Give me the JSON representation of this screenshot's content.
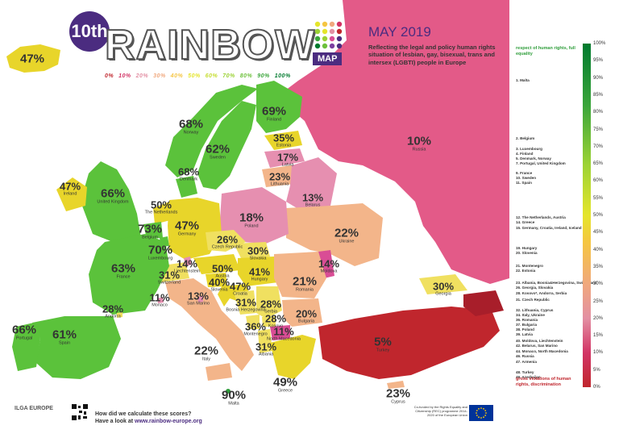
{
  "header": {
    "edition": "10th",
    "title": "RAINBOW",
    "badge": "MAP",
    "month": "MAY 2019",
    "description": "Reflecting the legal and policy human rights situation of lesbian, gay, bisexual, trans and intersex (LGBTI) people in Europe",
    "scale_labels": [
      "0%",
      "10%",
      "20%",
      "30%",
      "40%",
      "50%",
      "60%",
      "70%",
      "80%",
      "90%",
      "100%"
    ]
  },
  "legend": {
    "top": "respect of human rights, full equality",
    "bottom": "gross violations of human rights, discrimination",
    "ticks": [
      "100%",
      "95%",
      "90%",
      "85%",
      "80%",
      "75%",
      "70%",
      "65%",
      "60%",
      "55%",
      "50%",
      "45%",
      "40%",
      "35%",
      "30%",
      "25%",
      "20%",
      "15%",
      "10%",
      "5%",
      "0%"
    ]
  },
  "ranking": [
    {
      "text": "1. Malta",
      "value": 90
    },
    {
      "text": "2. Belgium",
      "value": 73
    },
    {
      "text": "3. Luxembourg",
      "value": 70
    },
    {
      "text": "4. Finland",
      "value": 69
    },
    {
      "text": "5. Denmark, Norway",
      "value": 68
    },
    {
      "text": "7. Portugal, United Kingdom",
      "value": 66
    },
    {
      "text": "9. France",
      "value": 63
    },
    {
      "text": "10. Sweden",
      "value": 62
    },
    {
      "text": "11. Spain",
      "value": 61
    },
    {
      "text": "12. The Netherlands, Austria",
      "value": 50
    },
    {
      "text": "14. Greece",
      "value": 49
    },
    {
      "text": "15. Germany, Croatia, Ireland, Iceland",
      "value": 47
    },
    {
      "text": "19. Hungary",
      "value": 41
    },
    {
      "text": "20. Slovenia",
      "value": 40
    },
    {
      "text": "21. Montenegro",
      "value": 36
    },
    {
      "text": "22. Estonia",
      "value": 35
    },
    {
      "text": "23. Albania, Bosnia&Herzegovina, Switzerland",
      "value": 31
    },
    {
      "text": "26. Georgia, Slovakia",
      "value": 30
    },
    {
      "text": "28. Kosovo*, Andorra, Serbia",
      "value": 28
    },
    {
      "text": "31. Czech Republic",
      "value": 26
    },
    {
      "text": "32. Lithuania, Cyprus",
      "value": 23
    },
    {
      "text": "34. Italy, Ukraine",
      "value": 22
    },
    {
      "text": "36. Romania",
      "value": 21
    },
    {
      "text": "37. Bulgaria",
      "value": 20
    },
    {
      "text": "38. Poland",
      "value": 18
    },
    {
      "text": "39. Latvia",
      "value": 17
    },
    {
      "text": "40. Moldova, Liechtenstein",
      "value": 14
    },
    {
      "text": "42. Belarus, San Marino",
      "value": 13
    },
    {
      "text": "44. Monaco, North Macedonia",
      "value": 11
    },
    {
      "text": "46. Russia",
      "value": 10
    },
    {
      "text": "47. Armenia",
      "value": 8
    },
    {
      "text": "48. Turkey",
      "value": 5
    },
    {
      "text": "49. Azerbaijan",
      "value": 5
    }
  ],
  "countries": [
    {
      "name": "Iceland",
      "pct": "47"
    },
    {
      "name": "Norway",
      "pct": "68"
    },
    {
      "name": "Sweden",
      "pct": "62"
    },
    {
      "name": "Finland",
      "pct": "69"
    },
    {
      "name": "Estonia",
      "pct": "35"
    },
    {
      "name": "Latvia",
      "pct": "17"
    },
    {
      "name": "Lithuania",
      "pct": "23"
    },
    {
      "name": "Denmark",
      "pct": "68"
    },
    {
      "name": "Ireland",
      "pct": "47"
    },
    {
      "name": "United Kingdom",
      "pct": "66"
    },
    {
      "name": "The Netherlands",
      "pct": "50"
    },
    {
      "name": "Belgium",
      "pct": "73"
    },
    {
      "name": "Luxembourg",
      "pct": "70"
    },
    {
      "name": "Germany",
      "pct": "47"
    },
    {
      "name": "Poland",
      "pct": "18"
    },
    {
      "name": "Belarus",
      "pct": "13"
    },
    {
      "name": "Russia",
      "pct": "10"
    },
    {
      "name": "Czech Republic",
      "pct": "26"
    },
    {
      "name": "Slovakia",
      "pct": "30"
    },
    {
      "name": "Ukraine",
      "pct": "22"
    },
    {
      "name": "France",
      "pct": "63"
    },
    {
      "name": "Liechtenstein",
      "pct": "14"
    },
    {
      "name": "Switzerland",
      "pct": "31"
    },
    {
      "name": "Austria",
      "pct": "50"
    },
    {
      "name": "Hungary",
      "pct": "41"
    },
    {
      "name": "Moldova",
      "pct": "14"
    },
    {
      "name": "Slovenia",
      "pct": "40"
    },
    {
      "name": "Croatia",
      "pct": "47"
    },
    {
      "name": "Romania",
      "pct": "21"
    },
    {
      "name": "Monaco",
      "pct": "11"
    },
    {
      "name": "San Marino",
      "pct": "13"
    },
    {
      "name": "Bosnia Herzegovina",
      "pct": "31"
    },
    {
      "name": "Serbia",
      "pct": "28"
    },
    {
      "name": "Kosovo",
      "pct": "28"
    },
    {
      "name": "Montenegro",
      "pct": "36"
    },
    {
      "name": "North Macedonia",
      "pct": "11"
    },
    {
      "name": "Bulgaria",
      "pct": "20"
    },
    {
      "name": "Georgia",
      "pct": "30"
    },
    {
      "name": "Andorra",
      "pct": "28"
    },
    {
      "name": "Portugal",
      "pct": "66"
    },
    {
      "name": "Spain",
      "pct": "61"
    },
    {
      "name": "Italy",
      "pct": "22"
    },
    {
      "name": "Albania",
      "pct": "31"
    },
    {
      "name": "Greece",
      "pct": "49"
    },
    {
      "name": "Turkey",
      "pct": "5"
    },
    {
      "name": "Malta",
      "pct": "90"
    },
    {
      "name": "Cyprus",
      "pct": "23"
    }
  ],
  "colors": {
    "purple": "#4b2c80",
    "russia": "#e35a88",
    "turkey": "#c0262d",
    "green_dark": "#2e9d3a",
    "green": "#5bc23b",
    "yellow": "#e8d52a",
    "orange_light": "#f3b58a",
    "pink": "#e68fb0"
  },
  "footer": {
    "org": "ILGA EUROPE",
    "question": "How did we calculate these scores?",
    "link_prefix": "Have a look at",
    "url": "www.rainbow-europe.org",
    "cofund": "Co-funded by the Rights Equality and Citizenship (REC) programme 2014-2020 of the European Union"
  }
}
